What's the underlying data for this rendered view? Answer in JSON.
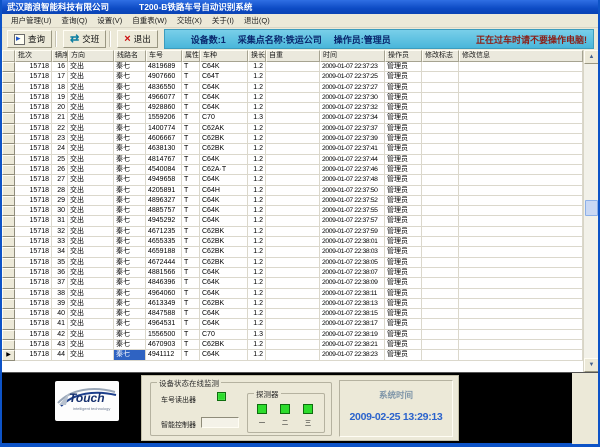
{
  "window": {
    "title_company": "武汉踏浪智能科技有限公司",
    "title_app": "T200-B铁路车号自动识别系统"
  },
  "menu": {
    "items": [
      "用户管理(U)",
      "查询(Q)",
      "设置(V)",
      "自重表(W)",
      "交班(X)",
      "关于(I)",
      "退出(Q)"
    ]
  },
  "toolbar": {
    "buttons": [
      {
        "label": "查询",
        "icon": "query-icon"
      },
      {
        "label": "交班",
        "icon": "shift-change-icon"
      },
      {
        "label": "退出",
        "icon": "exit-icon"
      }
    ],
    "status": {
      "device_count": "设备数:1",
      "collection_point": "采集点名称:铁运公司",
      "operator": "操作员:管理员",
      "warning": "正在过车时请不要操作电脑!"
    }
  },
  "grid": {
    "columns": [
      "批次",
      "辆序",
      "方向",
      "线路名",
      "车号",
      "属性",
      "车种",
      "换长",
      "自重",
      "时间",
      "操作员",
      "修改标志",
      "修改信息"
    ],
    "selection": {
      "row": 28,
      "column": 3
    },
    "rows": [
      [
        "15718",
        "16",
        "交出",
        "秦七",
        "4819689",
        "T",
        "C64K",
        "1.2",
        "",
        "2009-01-07 22:37:23",
        "管理员",
        "",
        ""
      ],
      [
        "15718",
        "17",
        "交出",
        "秦七",
        "4907660",
        "T",
        "C64T",
        "1.2",
        "",
        "2009-01-07 22:37:25",
        "管理员",
        "",
        ""
      ],
      [
        "15718",
        "18",
        "交出",
        "秦七",
        "4836550",
        "T",
        "C64K",
        "1.2",
        "",
        "2009-01-07 22:37:27",
        "管理员",
        "",
        ""
      ],
      [
        "15718",
        "19",
        "交出",
        "秦七",
        "4966077",
        "T",
        "C64K",
        "1.2",
        "",
        "2009-01-07 22:37:30",
        "管理员",
        "",
        ""
      ],
      [
        "15718",
        "20",
        "交出",
        "秦七",
        "4928860",
        "T",
        "C64K",
        "1.2",
        "",
        "2009-01-07 22:37:32",
        "管理员",
        "",
        ""
      ],
      [
        "15718",
        "21",
        "交出",
        "秦七",
        "1559206",
        "T",
        "C70",
        "1.3",
        "",
        "2009-01-07 22:37:34",
        "管理员",
        "",
        ""
      ],
      [
        "15718",
        "22",
        "交出",
        "秦七",
        "1400774",
        "T",
        "C62AK",
        "1.2",
        "",
        "2009-01-07 22:37:37",
        "管理员",
        "",
        ""
      ],
      [
        "15718",
        "23",
        "交出",
        "秦七",
        "4606667",
        "T",
        "C62BK",
        "1.2",
        "",
        "2009-01-07 22:37:39",
        "管理员",
        "",
        ""
      ],
      [
        "15718",
        "24",
        "交出",
        "秦七",
        "4638130",
        "T",
        "C62BK",
        "1.2",
        "",
        "2009-01-07 22:37:41",
        "管理员",
        "",
        ""
      ],
      [
        "15718",
        "25",
        "交出",
        "秦七",
        "4814767",
        "T",
        "C64K",
        "1.2",
        "",
        "2009-01-07 22:37:44",
        "管理员",
        "",
        ""
      ],
      [
        "15718",
        "26",
        "交出",
        "秦七",
        "4540084",
        "T",
        "C62A·T",
        "1.2",
        "",
        "2009-01-07 22:37:46",
        "管理员",
        "",
        ""
      ],
      [
        "15718",
        "27",
        "交出",
        "秦七",
        "4949658",
        "T",
        "C64K",
        "1.2",
        "",
        "2009-01-07 22:37:48",
        "管理员",
        "",
        ""
      ],
      [
        "15718",
        "28",
        "交出",
        "秦七",
        "4205891",
        "T",
        "C64H",
        "1.2",
        "",
        "2009-01-07 22:37:50",
        "管理员",
        "",
        ""
      ],
      [
        "15718",
        "29",
        "交出",
        "秦七",
        "4896327",
        "T",
        "C64K",
        "1.2",
        "",
        "2009-01-07 22:37:52",
        "管理员",
        "",
        ""
      ],
      [
        "15718",
        "30",
        "交出",
        "秦七",
        "4885757",
        "T",
        "C64K",
        "1.2",
        "",
        "2009-01-07 22:37:55",
        "管理员",
        "",
        ""
      ],
      [
        "15718",
        "31",
        "交出",
        "秦七",
        "4945292",
        "T",
        "C64K",
        "1.2",
        "",
        "2009-01-07 22:37:57",
        "管理员",
        "",
        ""
      ],
      [
        "15718",
        "32",
        "交出",
        "秦七",
        "4671235",
        "T",
        "C62BK",
        "1.2",
        "",
        "2009-01-07 22:37:59",
        "管理员",
        "",
        ""
      ],
      [
        "15718",
        "33",
        "交出",
        "秦七",
        "4655335",
        "T",
        "C62BK",
        "1.2",
        "",
        "2009-01-07 22:38:01",
        "管理员",
        "",
        ""
      ],
      [
        "15718",
        "34",
        "交出",
        "秦七",
        "4659188",
        "T",
        "C62BK",
        "1.2",
        "",
        "2009-01-07 22:38:03",
        "管理员",
        "",
        ""
      ],
      [
        "15718",
        "35",
        "交出",
        "秦七",
        "4672444",
        "T",
        "C62BK",
        "1.2",
        "",
        "2009-01-07 22:38:05",
        "管理员",
        "",
        ""
      ],
      [
        "15718",
        "36",
        "交出",
        "秦七",
        "4881566",
        "T",
        "C64K",
        "1.2",
        "",
        "2009-01-07 22:38:07",
        "管理员",
        "",
        ""
      ],
      [
        "15718",
        "37",
        "交出",
        "秦七",
        "4846396",
        "T",
        "C64K",
        "1.2",
        "",
        "2009-01-07 22:38:09",
        "管理员",
        "",
        ""
      ],
      [
        "15718",
        "38",
        "交出",
        "秦七",
        "4964060",
        "T",
        "C64K",
        "1.2",
        "",
        "2009-01-07 22:38:11",
        "管理员",
        "",
        ""
      ],
      [
        "15718",
        "39",
        "交出",
        "秦七",
        "4613349",
        "T",
        "C62BK",
        "1.2",
        "",
        "2009-01-07 22:38:13",
        "管理员",
        "",
        ""
      ],
      [
        "15718",
        "40",
        "交出",
        "秦七",
        "4847588",
        "T",
        "C64K",
        "1.2",
        "",
        "2009-01-07 22:38:15",
        "管理员",
        "",
        ""
      ],
      [
        "15718",
        "41",
        "交出",
        "秦七",
        "4964531",
        "T",
        "C64K",
        "1.2",
        "",
        "2009-01-07 22:38:17",
        "管理员",
        "",
        ""
      ],
      [
        "15718",
        "42",
        "交出",
        "秦七",
        "1556500",
        "T",
        "C70",
        "1.3",
        "",
        "2009-01-07 22:38:19",
        "管理员",
        "",
        ""
      ],
      [
        "15718",
        "43",
        "交出",
        "秦七",
        "4670903",
        "T",
        "C62BK",
        "1.2",
        "",
        "2009-01-07 22:38:21",
        "管理员",
        "",
        ""
      ],
      [
        "15718",
        "44",
        "交出",
        "秦七",
        "4941112",
        "T",
        "C64K",
        "1.2",
        "",
        "2009-01-07 22:38:23",
        "管理员",
        "",
        ""
      ]
    ]
  },
  "icons": {
    "scroll_up": "▲",
    "scroll_down": "▼",
    "row_marker": "▶",
    "shift_glyph": "⇄",
    "exit_glyph": "×"
  },
  "footer": {
    "logo": {
      "brand": "Touch",
      "tagline": "intelligent technology"
    },
    "monitor": {
      "title": "设备状态在线监测",
      "reader_label": "车号读出器",
      "controller_label": "智能控制器",
      "detector": {
        "title": "探测器",
        "leds": [
          "一",
          "二",
          "三"
        ]
      }
    },
    "system_time": {
      "label": "系统时间",
      "value": "2009-02-25 13:29:13"
    }
  },
  "colors": {
    "accent_blue": "#0d4bc4",
    "status_cyan": "#49b6da",
    "warning_red": "#8b2018",
    "selection_blue": "#2f63c2",
    "led_green": "#2ddc2d",
    "time_blue": "#2b63cc"
  }
}
